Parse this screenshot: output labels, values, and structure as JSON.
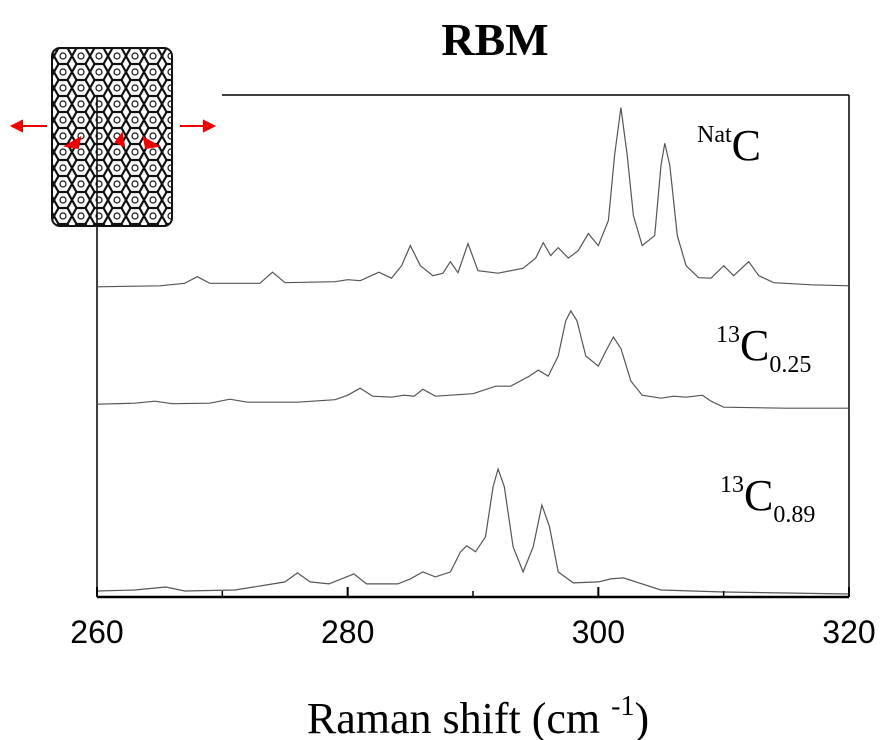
{
  "chart_data": {
    "type": "line",
    "title": "RBM",
    "xlabel": {
      "text": "Raman shift (cm ",
      "sup": "-1",
      "end": ")"
    },
    "xlim": [
      260,
      320
    ],
    "xticks": [
      260,
      280,
      300,
      320
    ],
    "xminorticks": [
      270,
      290,
      310
    ],
    "ylim": [
      0,
      100
    ],
    "series": [
      {
        "label": {
          "sup": "Nat",
          "base": "C"
        },
        "color": "#555555",
        "x": [
          260,
          265,
          267,
          268,
          269,
          273,
          274,
          275,
          279,
          280,
          281,
          282.5,
          283.5,
          284.3,
          285,
          285.8,
          286.8,
          287.6,
          288.2,
          288.8,
          289.6,
          290.4,
          292,
          294,
          295,
          295.6,
          296.2,
          296.8,
          297.6,
          298.4,
          299.2,
          300,
          300.8,
          301.3,
          301.8,
          302.3,
          302.8,
          303.5,
          304.5,
          305,
          305.3,
          305.7,
          306.3,
          307,
          308,
          309,
          310,
          310.8,
          312,
          312.8,
          314,
          317,
          320
        ],
        "values": [
          61.8,
          62,
          62.5,
          63.8,
          62.5,
          62.5,
          64.7,
          62.6,
          62.8,
          63.2,
          63,
          64.7,
          63.5,
          66,
          70,
          66,
          64,
          64.5,
          66.8,
          64.6,
          70.4,
          65,
          64.5,
          65.5,
          67.5,
          70.6,
          68,
          69.6,
          67.5,
          69,
          72.4,
          70,
          75,
          88,
          97.5,
          88,
          76,
          70,
          72,
          86,
          90.4,
          86,
          72,
          66,
          63.6,
          63.5,
          66,
          64,
          66.8,
          64,
          62.6,
          62.2,
          62
        ]
      },
      {
        "label": {
          "sup": "13",
          "base": "C",
          "sub": "0.25"
        },
        "color": "#555555",
        "x": [
          260,
          263,
          264.6,
          266,
          269,
          270.6,
          272,
          276,
          279,
          280,
          281,
          282,
          283.5,
          284.5,
          285.3,
          286,
          287,
          290,
          291.8,
          293,
          294.5,
          295.2,
          296,
          296.8,
          297.4,
          297.8,
          298.3,
          299,
          300,
          300.6,
          301.2,
          301.8,
          302.6,
          303.5,
          305,
          306,
          307,
          308.3,
          309,
          310,
          315,
          320
        ],
        "values": [
          38.4,
          38.6,
          39,
          38.5,
          38.6,
          39.4,
          38.8,
          38.8,
          39.3,
          40.2,
          41.6,
          40,
          39.8,
          40.2,
          40,
          41.4,
          40,
          40.5,
          42,
          42,
          44,
          45.2,
          44,
          48,
          55,
          57,
          55,
          48,
          46,
          49,
          51.8,
          49.5,
          43,
          40.2,
          39.6,
          40,
          39.8,
          40.2,
          39,
          37.8,
          37.6,
          37.6
        ]
      },
      {
        "label": {
          "sup": "13",
          "base": "C",
          "sub": "0.89"
        },
        "color": "#555555",
        "x": [
          260,
          263,
          265.5,
          267,
          271,
          273.5,
          275,
          276,
          277,
          278.5,
          279.5,
          280.5,
          281.5,
          284,
          285,
          286,
          287,
          288.2,
          289,
          289.5,
          290.2,
          291,
          291.6,
          292,
          292.5,
          293.2,
          294,
          294.8,
          295.5,
          296.1,
          296.8,
          298,
          300,
          301,
          302,
          303,
          305,
          310,
          315,
          320
        ],
        "values": [
          1.2,
          1.4,
          2,
          1.2,
          1.4,
          2.4,
          3,
          4.8,
          3,
          2.6,
          3.6,
          4.6,
          2.6,
          2.6,
          3.6,
          5,
          4,
          5,
          9,
          10.2,
          9,
          12,
          22,
          25.5,
          22,
          10,
          5,
          10,
          18.3,
          14,
          5,
          2.8,
          3,
          3.6,
          3.8,
          3,
          1.4,
          1,
          0.8,
          0.6
        ]
      }
    ]
  }
}
